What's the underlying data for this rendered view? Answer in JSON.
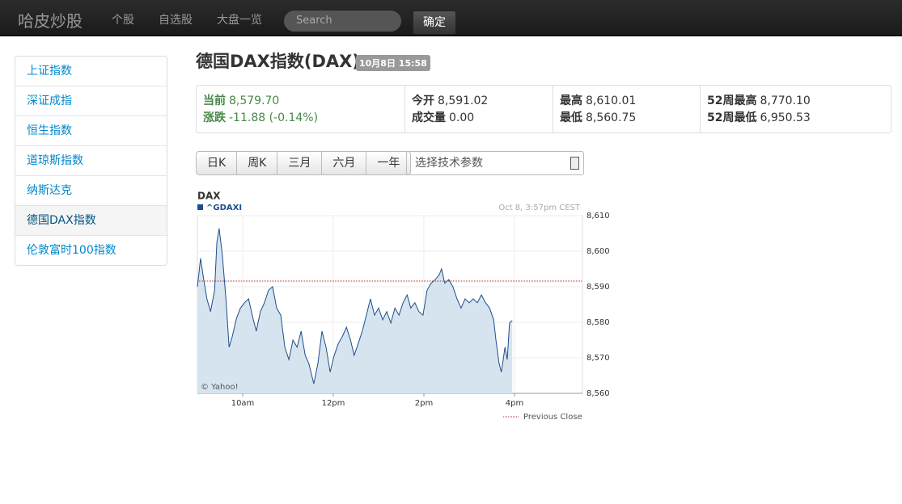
{
  "navbar": {
    "brand": "哈皮炒股",
    "links": [
      "个股",
      "自选股",
      "大盘一览"
    ],
    "search_placeholder": "Search",
    "button": "确定"
  },
  "sidebar": {
    "items": [
      "上证指数",
      "深证成指",
      "恒生指数",
      "道琼斯指数",
      "纳斯达克",
      "德国DAX指数",
      "伦敦富时100指数"
    ],
    "active": 5
  },
  "header": {
    "title": "德国DAX指数(DAX)",
    "badge": "10月8日 15:58"
  },
  "quote": {
    "columns": [
      [
        {
          "label": "当前",
          "value": "8,579.70"
        },
        {
          "label": "涨跌",
          "value": "-11.88 (-0.14%)"
        }
      ],
      [
        {
          "label": "今开",
          "value": "8,591.02"
        },
        {
          "label": "成交量",
          "value": "0.00"
        }
      ],
      [
        {
          "label": "最高",
          "value": "8,610.01"
        },
        {
          "label": "最低",
          "value": "8,560.75"
        }
      ],
      [
        {
          "label": "52周最高",
          "value": "8,770.10"
        },
        {
          "label": "52周最低",
          "value": "6,950.53"
        }
      ]
    ]
  },
  "period_buttons": [
    "日K",
    "周K",
    "三月",
    "六月",
    "一年"
  ],
  "select": "选择技术参数",
  "chart_data": {
    "type": "line",
    "title": "DAX",
    "timestamp": "Oct 8, 3:57pm CEST",
    "credit": "© Yahoo!",
    "x": [
      9.0,
      9.07,
      9.14,
      9.21,
      9.29,
      9.38,
      9.43,
      9.48,
      9.55,
      9.63,
      9.7,
      9.77,
      9.86,
      9.95,
      10.04,
      10.13,
      10.21,
      10.3,
      10.39,
      10.48,
      10.57,
      10.66,
      10.75,
      10.84,
      10.93,
      11.02,
      11.11,
      11.2,
      11.29,
      11.38,
      11.46,
      11.57,
      11.66,
      11.75,
      11.84,
      11.93,
      12.02,
      12.11,
      12.2,
      12.29,
      12.38,
      12.46,
      12.55,
      12.64,
      12.73,
      12.82,
      12.91,
      13.0,
      13.09,
      13.18,
      13.27,
      13.36,
      13.45,
      13.54,
      13.63,
      13.71,
      13.8,
      13.89,
      13.98,
      14.07,
      14.16,
      14.25,
      14.34,
      14.39,
      14.46,
      14.55,
      14.64,
      14.73,
      14.82,
      14.91,
      15.0,
      15.09,
      15.18,
      15.27,
      15.36,
      15.45,
      15.54,
      15.59,
      15.66,
      15.71,
      15.79,
      15.84,
      15.89,
      15.95
    ],
    "series": [
      {
        "name": "^GDAXI",
        "color": "#1f4e8c",
        "fill": "#d6e4ef",
        "values": [
          8590,
          8598,
          8592,
          8586.6,
          8583,
          8589,
          8602.5,
          8606.4,
          8599,
          8586.6,
          8573,
          8576,
          8581,
          8584,
          8585.5,
          8586.6,
          8582,
          8577.5,
          8583,
          8585.5,
          8589,
          8590,
          8584,
          8582,
          8573,
          8569.5,
          8575,
          8573,
          8577.5,
          8570.7,
          8568.4,
          8562.7,
          8568.4,
          8577.5,
          8573,
          8566,
          8570.7,
          8574,
          8576,
          8578.6,
          8575,
          8570.7,
          8574,
          8577.5,
          8582,
          8586.6,
          8582,
          8584,
          8580.7,
          8583,
          8579.8,
          8584,
          8582,
          8585.5,
          8587.7,
          8584,
          8585.5,
          8583,
          8582,
          8589,
          8591,
          8592,
          8593.4,
          8595,
          8591,
          8592,
          8590,
          8586.6,
          8584,
          8586.6,
          8585.5,
          8586.6,
          8585.5,
          8587.7,
          8585.5,
          8584,
          8580.7,
          8575,
          8568.4,
          8566,
          8573,
          8569.5,
          8579.8,
          8580.5
        ]
      }
    ],
    "reference_line": {
      "name": "Previous Close",
      "value": 8591.58,
      "color": "#cc2222"
    },
    "xlim": [
      9,
      17.5
    ],
    "ylim": [
      8560,
      8610
    ],
    "xticks": [
      {
        "value": 10,
        "label": "10am"
      },
      {
        "value": 12,
        "label": "12pm"
      },
      {
        "value": 14,
        "label": "2pm"
      },
      {
        "value": 16,
        "label": "4pm"
      }
    ],
    "yticks": [
      {
        "value": 8560,
        "label": "8,560"
      },
      {
        "value": 8570,
        "label": "8,570"
      },
      {
        "value": 8580,
        "label": "8,580"
      },
      {
        "value": 8590,
        "label": "8,590"
      },
      {
        "value": 8600,
        "label": "8,600"
      },
      {
        "value": 8610,
        "label": "8,610"
      }
    ],
    "grid": true
  }
}
